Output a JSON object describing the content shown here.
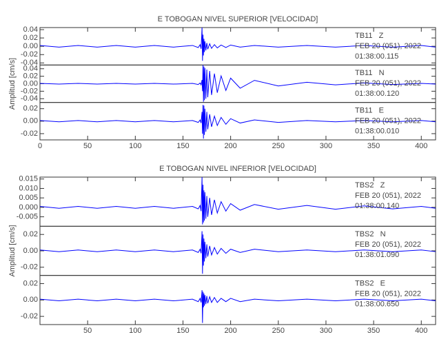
{
  "chart_data": [
    {
      "type": "line",
      "title": "E TOBOGAN NIVEL SUPERIOR [VELOCIDAD]",
      "ylabel": "Amplitud [cm/s]",
      "color": "#0000ff",
      "xlim": [
        0,
        415
      ],
      "xticks": [
        0,
        50,
        100,
        150,
        200,
        250,
        300,
        350,
        400
      ],
      "x": [
        0,
        20,
        40,
        60,
        80,
        100,
        120,
        140,
        160,
        166,
        168,
        169,
        170,
        170.5,
        171,
        171.5,
        172,
        172.5,
        173,
        174,
        175,
        176,
        178,
        180,
        183,
        186,
        190,
        195,
        200,
        210,
        225,
        250,
        280,
        310,
        340,
        370,
        400,
        415
      ],
      "panels": [
        {
          "ylim": [
            -0.045,
            0.045
          ],
          "yticks": [
            -0.04,
            -0.02,
            {
              "value": 0,
              "label": "0.00"
            },
            0.02,
            0.04
          ],
          "annotations": [
            "TB11   Z",
            "FEB 20 (051), 2022",
            "01:38:00.115"
          ],
          "values": [
            0.002,
            -0.002,
            0.002,
            -0.002,
            0.002,
            -0.002,
            0.002,
            -0.002,
            0.002,
            -0.003,
            0.004,
            -0.006,
            0.045,
            -0.035,
            0.028,
            -0.022,
            0.018,
            -0.014,
            0.012,
            -0.01,
            0.008,
            -0.007,
            0.006,
            -0.005,
            0.004,
            -0.004,
            0.003,
            -0.003,
            0.003,
            -0.002,
            0.002,
            -0.002,
            0.002,
            -0.002,
            0.002,
            -0.002,
            0.002,
            -0.002
          ]
        },
        {
          "ylim": [
            -0.05,
            0.05
          ],
          "yticks": [
            -0.04,
            -0.02,
            {
              "value": 0,
              "label": "0.00"
            },
            0.02,
            0.04
          ],
          "annotations": [
            "TB11   N",
            "FEB 20 (051), 2022",
            "01:38:00.120"
          ],
          "values": [
            0.001,
            -0.001,
            0.001,
            -0.001,
            0.001,
            -0.001,
            0.001,
            -0.001,
            0.001,
            -0.002,
            0.002,
            -0.003,
            0.01,
            -0.02,
            0.05,
            -0.048,
            0.046,
            -0.044,
            0.042,
            -0.04,
            0.038,
            -0.036,
            0.034,
            -0.03,
            0.027,
            -0.024,
            0.021,
            -0.018,
            0.015,
            -0.012,
            0.009,
            -0.006,
            0.004,
            -0.003,
            0.002,
            -0.002,
            0.001,
            -0.001
          ]
        },
        {
          "ylim": [
            -0.03,
            0.03
          ],
          "yticks": [
            -0.02,
            {
              "value": 0,
              "label": "0.00"
            },
            0.02
          ],
          "annotations": [
            "TB11   E",
            "FEB 20 (051), 2022",
            "01:38:00.010"
          ],
          "values": [
            0.001,
            -0.001,
            0.001,
            -0.001,
            0.001,
            -0.001,
            0.001,
            -0.001,
            0.001,
            -0.002,
            0.002,
            -0.003,
            0.015,
            -0.02,
            0.026,
            -0.028,
            0.025,
            -0.022,
            0.02,
            -0.017,
            0.015,
            -0.013,
            0.011,
            -0.009,
            0.008,
            -0.007,
            0.006,
            -0.005,
            0.004,
            -0.003,
            0.002,
            -0.002,
            0.001,
            -0.001,
            0.001,
            -0.001,
            0.001,
            -0.001
          ]
        }
      ]
    },
    {
      "type": "line",
      "title": "E TOBOGAN NIVEL INFERIOR [VELOCIDAD]",
      "ylabel": "Amplitud [cm/s]",
      "color": "#0000ff",
      "xlim": [
        0,
        415
      ],
      "xticks": [
        50,
        100,
        150,
        200,
        250,
        300,
        350,
        400
      ],
      "x": [
        0,
        20,
        40,
        60,
        80,
        100,
        120,
        140,
        160,
        166,
        168,
        169,
        170,
        170.5,
        171,
        171.5,
        172,
        172.5,
        173,
        174,
        175,
        176,
        178,
        180,
        183,
        186,
        190,
        195,
        200,
        210,
        225,
        250,
        280,
        310,
        340,
        370,
        400,
        415
      ],
      "panels": [
        {
          "ylim": [
            -0.01,
            0.016
          ],
          "yticks": [
            -0.005,
            {
              "value": 0,
              "label": "0.000"
            },
            0.005,
            {
              "value": 0.01,
              "label": "0.010"
            },
            0.015
          ],
          "annotations": [
            "TBS2   Z",
            "FEB 20 (051), 2022",
            "01:38:00.140"
          ],
          "values": [
            0.0005,
            -0.0005,
            0.0005,
            -0.0005,
            0.0005,
            -0.0005,
            0.0005,
            -0.0005,
            0.0005,
            -0.0008,
            0.001,
            -0.002,
            0.016,
            -0.009,
            0.012,
            -0.008,
            0.009,
            -0.007,
            0.008,
            -0.006,
            0.006,
            -0.005,
            0.005,
            -0.004,
            0.004,
            -0.003,
            0.003,
            -0.002,
            0.002,
            -0.0015,
            0.0015,
            -0.001,
            0.001,
            -0.001,
            0.0008,
            -0.0008,
            0.0005,
            -0.0005
          ]
        },
        {
          "ylim": [
            -0.03,
            0.03
          ],
          "yticks": [
            -0.02,
            {
              "value": 0,
              "label": "0.00"
            },
            0.02
          ],
          "annotations": [
            "TBS2   N",
            "FEB 20 (051), 2022",
            "01:38:01.090"
          ],
          "values": [
            0.001,
            -0.001,
            0.001,
            -0.001,
            0.001,
            -0.001,
            0.001,
            -0.001,
            0.001,
            -0.002,
            0.002,
            -0.003,
            0.024,
            -0.028,
            0.02,
            -0.018,
            0.015,
            -0.013,
            0.011,
            -0.009,
            0.008,
            -0.007,
            0.006,
            -0.005,
            0.004,
            -0.004,
            0.003,
            -0.003,
            0.002,
            -0.002,
            0.002,
            -0.001,
            0.001,
            -0.001,
            0.001,
            -0.001,
            0.001,
            -0.001
          ]
        },
        {
          "ylim": [
            -0.03,
            0.03
          ],
          "yticks": [
            -0.02,
            {
              "value": 0,
              "label": "0.00"
            },
            0.02
          ],
          "annotations": [
            "TBS2   E",
            "FEB 20 (051), 2022",
            "01:38:00.650"
          ],
          "values": [
            0.001,
            -0.001,
            0.001,
            -0.001,
            0.001,
            -0.001,
            0.001,
            -0.001,
            0.001,
            -0.002,
            0.002,
            -0.003,
            0.012,
            -0.028,
            0.01,
            -0.009,
            0.008,
            -0.007,
            0.006,
            -0.005,
            0.005,
            -0.004,
            0.004,
            -0.003,
            0.003,
            -0.003,
            0.002,
            -0.002,
            0.002,
            -0.002,
            0.001,
            -0.001,
            0.001,
            -0.001,
            0.001,
            -0.001,
            0.001,
            -0.001
          ]
        }
      ]
    }
  ]
}
